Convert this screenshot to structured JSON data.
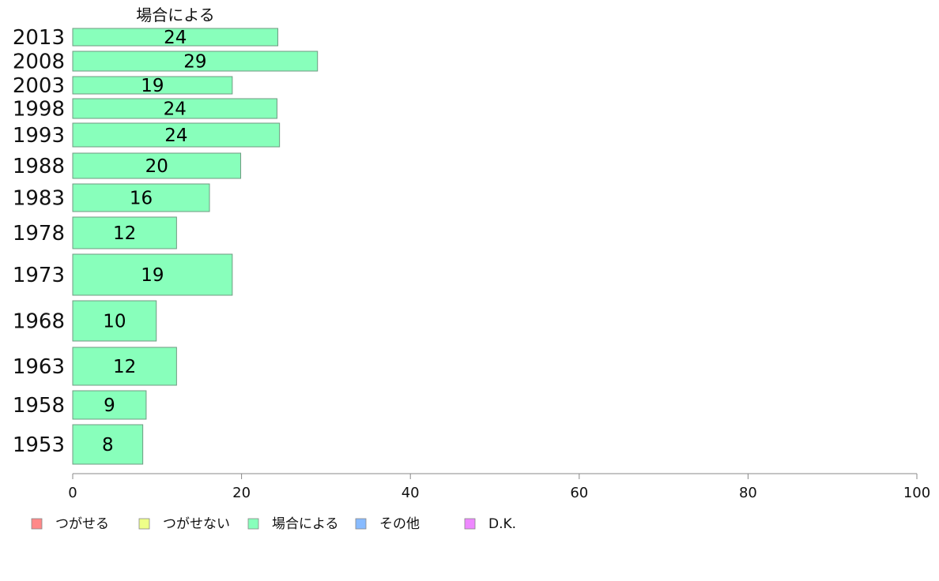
{
  "chart_data": {
    "type": "bar",
    "orientation": "horizontal",
    "series_title": "場合による",
    "categories": [
      "2013",
      "2008",
      "2003",
      "1998",
      "1993",
      "1988",
      "1983",
      "1978",
      "1973",
      "1968",
      "1963",
      "1958",
      "1953"
    ],
    "series": [
      {
        "name": "場合による",
        "color": "#88ffbb",
        "values": [
          24.3,
          29.0,
          18.9,
          24.2,
          24.5,
          19.9,
          16.2,
          12.3,
          18.9,
          9.9,
          12.3,
          8.7,
          8.3
        ],
        "labels": [
          "24",
          "29",
          "19",
          "24",
          "24",
          "20",
          "16",
          "12",
          "19",
          "10",
          "12",
          "9",
          "8"
        ]
      }
    ],
    "xlim": [
      0,
      100
    ],
    "xticks": [
      "0",
      "20",
      "40",
      "60",
      "80",
      "100"
    ],
    "grid": false,
    "legend_position": "bottom",
    "legend": [
      {
        "label": "つがせる",
        "color": "#ff8888"
      },
      {
        "label": "つがせない",
        "color": "#eeff88"
      },
      {
        "label": "場合による",
        "color": "#88ffbb"
      },
      {
        "label": "その他",
        "color": "#88bbff"
      },
      {
        "label": "D.K.",
        "color": "#ee88ff"
      }
    ]
  }
}
